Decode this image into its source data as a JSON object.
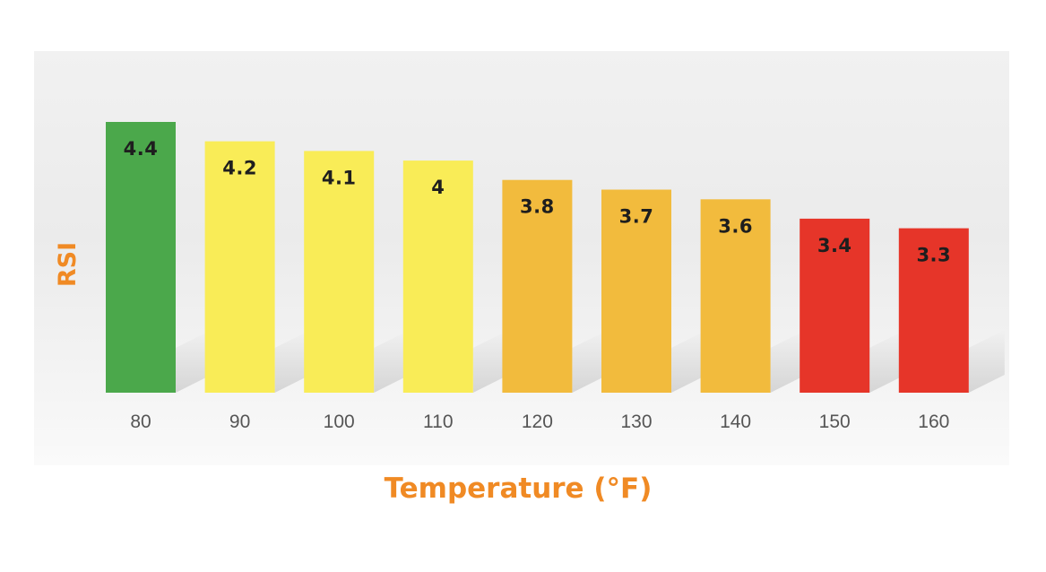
{
  "chart_data": {
    "type": "bar",
    "title": "",
    "xlabel": "Temperature (°F)",
    "ylabel": "RSI",
    "categories": [
      "80",
      "90",
      "100",
      "110",
      "120",
      "130",
      "140",
      "150",
      "160"
    ],
    "values": [
      4.4,
      4.2,
      4.1,
      4,
      3.8,
      3.7,
      3.6,
      3.4,
      3.3
    ],
    "value_labels": [
      "4.4",
      "4.2",
      "4.1",
      "4",
      "3.8",
      "3.7",
      "3.6",
      "3.4",
      "3.3"
    ],
    "colors": [
      "#4ba84b",
      "#f9ec57",
      "#f9ec57",
      "#f9ec57",
      "#f2bb3d",
      "#f2bb3d",
      "#f2bb3d",
      "#e63529",
      "#e63529"
    ],
    "ylim": [
      1.6,
      4.4
    ],
    "grid": false,
    "legend": "none",
    "axis_title_color": "#f08a24"
  }
}
